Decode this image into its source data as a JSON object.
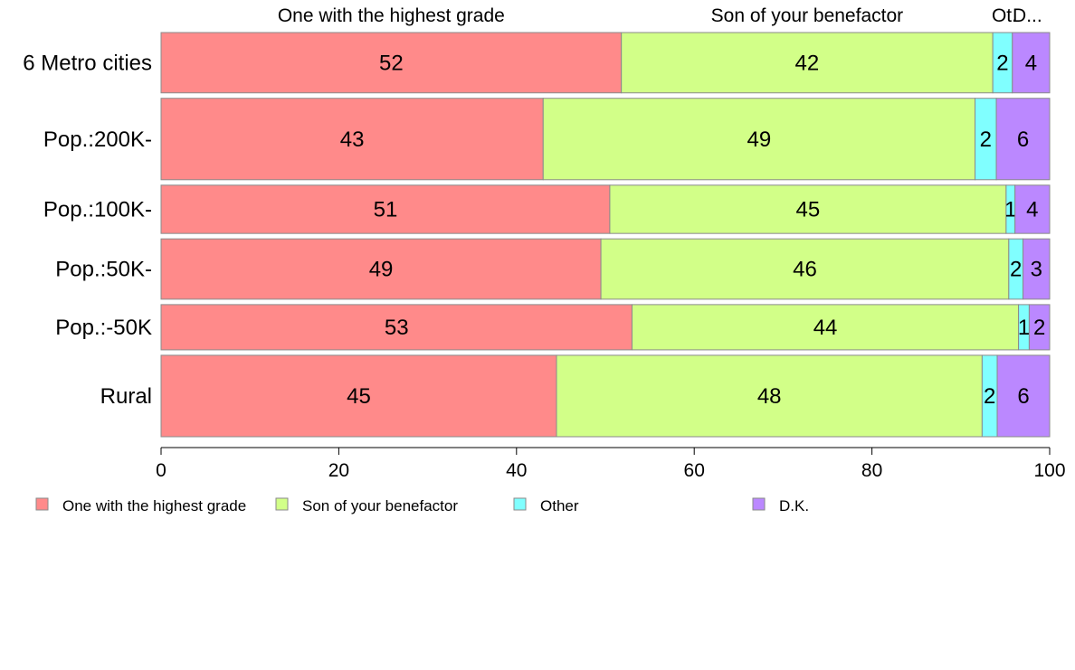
{
  "chart_data": {
    "type": "bar",
    "orientation": "horizontal",
    "stacked": true,
    "categories": [
      "6 Metro cities",
      "Pop.:200K-",
      "Pop.:100K-",
      "Pop.:50K-",
      "Pop.:-50K",
      "Rural"
    ],
    "series": [
      {
        "name": "One with the highest grade",
        "values": [
          52,
          43,
          51,
          49,
          53,
          45
        ],
        "exact": [
          51.8,
          43.0,
          50.5,
          49.5,
          53.0,
          44.5
        ],
        "color": "#ff8a8a"
      },
      {
        "name": "Son of your benefactor",
        "values": [
          42,
          49,
          45,
          46,
          44,
          48
        ],
        "exact": [
          41.8,
          48.6,
          44.6,
          45.9,
          43.5,
          47.9
        ],
        "color": "#d2ff88"
      },
      {
        "name": "Other",
        "values": [
          2,
          2,
          1,
          2,
          1,
          2
        ],
        "exact": [
          2.2,
          2.4,
          1.0,
          1.6,
          1.2,
          1.7
        ],
        "color": "#80ffff"
      },
      {
        "name": "D.K.",
        "values": [
          4,
          6,
          4,
          3,
          2,
          6
        ],
        "exact": [
          4.2,
          6.0,
          3.9,
          3.0,
          2.3,
          5.9
        ],
        "color": "#bb88ff"
      }
    ],
    "top_labels": [
      "One with the highest grade",
      "Son of your benefactor",
      "Ot.",
      "D..."
    ],
    "bar_weights": [
      1.0,
      1.35,
      0.8,
      1.0,
      0.75,
      1.35
    ],
    "xlim": [
      0,
      100
    ],
    "xticks": [
      "0",
      "20",
      "40",
      "60",
      "80",
      "100"
    ],
    "legend_position": "bottom",
    "grid": false
  }
}
